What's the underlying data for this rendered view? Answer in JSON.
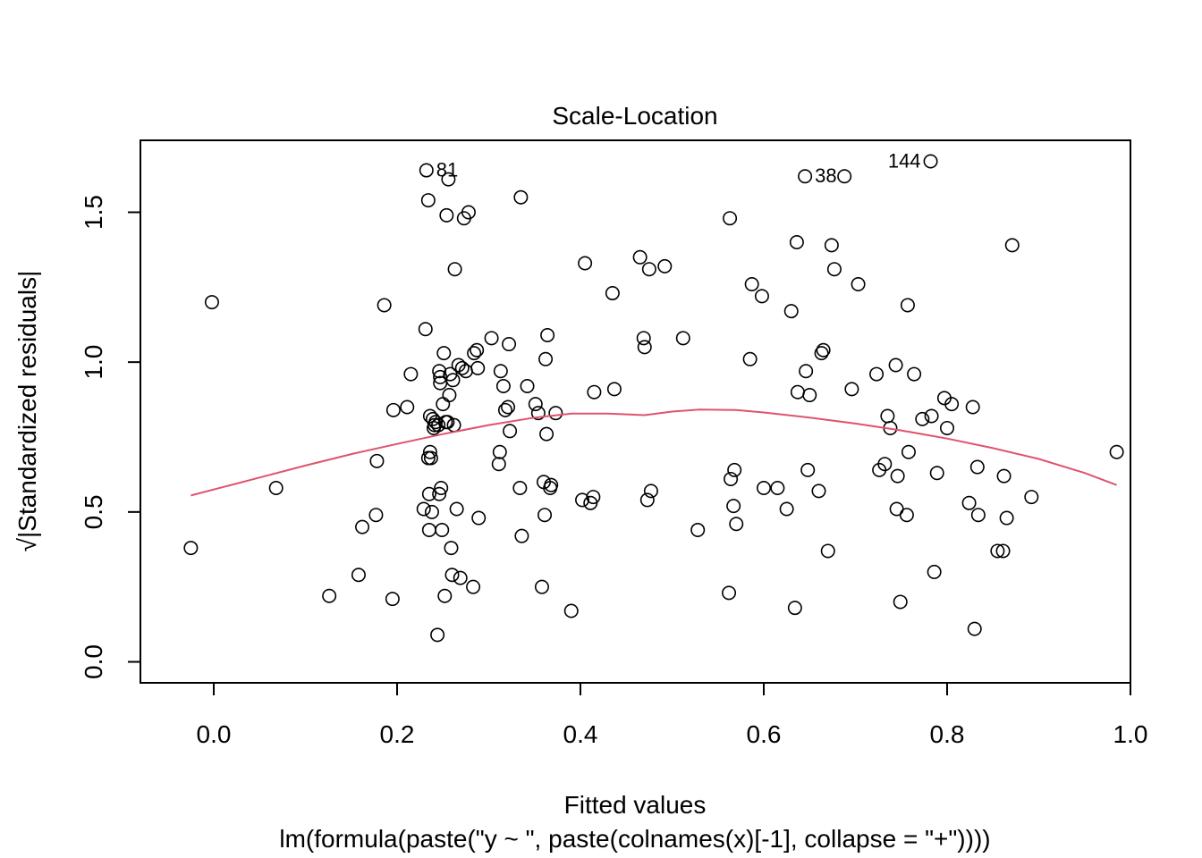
{
  "chart_data": {
    "type": "scatter",
    "title": "Scale-Location",
    "xlabel": "Fitted values",
    "ylabel": "√|Standardized residuals|",
    "subtitle": "lm(formula(paste(\"y ~ \", paste(colnames(x)[-1], collapse = \"+\"))))",
    "xlim": [
      -0.08,
      1.0
    ],
    "ylim": [
      -0.07,
      1.74
    ],
    "x_ticks": [
      0.0,
      0.2,
      0.4,
      0.6,
      0.8,
      1.0
    ],
    "x_tick_labels": [
      "0.0",
      "0.2",
      "0.4",
      "0.6",
      "0.8",
      "1.0"
    ],
    "y_ticks": [
      0.0,
      0.5,
      1.0,
      1.5
    ],
    "y_tick_labels": [
      "0.0",
      "0.5",
      "1.0",
      "1.5"
    ],
    "grid": false,
    "smooth_color": "#DF536B",
    "point_color": "#000000",
    "points": [
      [
        -0.025,
        0.38
      ],
      [
        -0.002,
        1.2
      ],
      [
        0.068,
        0.58
      ],
      [
        0.126,
        0.22
      ],
      [
        0.158,
        0.29
      ],
      [
        0.162,
        0.45
      ],
      [
        0.177,
        0.49
      ],
      [
        0.178,
        0.67
      ],
      [
        0.186,
        1.19
      ],
      [
        0.195,
        0.21
      ],
      [
        0.196,
        0.84
      ],
      [
        0.211,
        0.85
      ],
      [
        0.215,
        0.96
      ],
      [
        0.229,
        0.51
      ],
      [
        0.231,
        1.11
      ],
      [
        0.232,
        1.64
      ],
      [
        0.234,
        1.54
      ],
      [
        0.234,
        0.68
      ],
      [
        0.235,
        0.44
      ],
      [
        0.235,
        0.56
      ],
      [
        0.236,
        0.82
      ],
      [
        0.236,
        0.7
      ],
      [
        0.237,
        0.68
      ],
      [
        0.238,
        0.5
      ],
      [
        0.239,
        0.81
      ],
      [
        0.24,
        0.78
      ],
      [
        0.241,
        0.79
      ],
      [
        0.242,
        0.8
      ],
      [
        0.244,
        0.09
      ],
      [
        0.245,
        0.79
      ],
      [
        0.246,
        0.97
      ],
      [
        0.246,
        0.56
      ],
      [
        0.247,
        0.95
      ],
      [
        0.247,
        0.93
      ],
      [
        0.248,
        0.58
      ],
      [
        0.249,
        0.44
      ],
      [
        0.25,
        0.86
      ],
      [
        0.251,
        1.03
      ],
      [
        0.252,
        0.22
      ],
      [
        0.253,
        0.8
      ],
      [
        0.254,
        1.49
      ],
      [
        0.255,
        0.8
      ],
      [
        0.256,
        1.61
      ],
      [
        0.257,
        0.89
      ],
      [
        0.258,
        0.96
      ],
      [
        0.259,
        0.38
      ],
      [
        0.26,
        0.29
      ],
      [
        0.261,
        0.94
      ],
      [
        0.262,
        0.79
      ],
      [
        0.263,
        1.31
      ],
      [
        0.265,
        0.51
      ],
      [
        0.267,
        0.99
      ],
      [
        0.269,
        0.28
      ],
      [
        0.271,
        0.98
      ],
      [
        0.273,
        1.48
      ],
      [
        0.275,
        0.97
      ],
      [
        0.278,
        1.5
      ],
      [
        0.283,
        0.25
      ],
      [
        0.284,
        1.03
      ],
      [
        0.287,
        1.04
      ],
      [
        0.288,
        0.98
      ],
      [
        0.289,
        0.48
      ],
      [
        0.303,
        1.08
      ],
      [
        0.311,
        0.66
      ],
      [
        0.312,
        0.7
      ],
      [
        0.313,
        0.97
      ],
      [
        0.316,
        0.92
      ],
      [
        0.318,
        0.84
      ],
      [
        0.321,
        0.85
      ],
      [
        0.322,
        1.06
      ],
      [
        0.323,
        0.77
      ],
      [
        0.334,
        0.58
      ],
      [
        0.335,
        1.55
      ],
      [
        0.336,
        0.42
      ],
      [
        0.342,
        0.92
      ],
      [
        0.351,
        0.86
      ],
      [
        0.354,
        0.83
      ],
      [
        0.358,
        0.25
      ],
      [
        0.36,
        0.6
      ],
      [
        0.361,
        0.49
      ],
      [
        0.362,
        1.01
      ],
      [
        0.363,
        0.76
      ],
      [
        0.364,
        1.09
      ],
      [
        0.367,
        0.58
      ],
      [
        0.368,
        0.59
      ],
      [
        0.373,
        0.83
      ],
      [
        0.39,
        0.17
      ],
      [
        0.402,
        0.54
      ],
      [
        0.405,
        1.33
      ],
      [
        0.411,
        0.53
      ],
      [
        0.414,
        0.55
      ],
      [
        0.415,
        0.9
      ],
      [
        0.435,
        1.23
      ],
      [
        0.437,
        0.91
      ],
      [
        0.465,
        1.35
      ],
      [
        0.469,
        1.08
      ],
      [
        0.47,
        1.05
      ],
      [
        0.473,
        0.54
      ],
      [
        0.475,
        1.31
      ],
      [
        0.477,
        0.57
      ],
      [
        0.492,
        1.32
      ],
      [
        0.512,
        1.08
      ],
      [
        0.528,
        0.44
      ],
      [
        0.562,
        0.23
      ],
      [
        0.563,
        1.48
      ],
      [
        0.564,
        0.61
      ],
      [
        0.567,
        0.52
      ],
      [
        0.568,
        0.64
      ],
      [
        0.57,
        0.46
      ],
      [
        0.585,
        1.01
      ],
      [
        0.587,
        1.26
      ],
      [
        0.598,
        1.22
      ],
      [
        0.6,
        0.58
      ],
      [
        0.615,
        0.58
      ],
      [
        0.625,
        0.51
      ],
      [
        0.63,
        1.17
      ],
      [
        0.634,
        0.18
      ],
      [
        0.636,
        1.4
      ],
      [
        0.637,
        0.9
      ],
      [
        0.645,
        1.62
      ],
      [
        0.646,
        0.97
      ],
      [
        0.648,
        0.64
      ],
      [
        0.65,
        0.89
      ],
      [
        0.66,
        0.57
      ],
      [
        0.663,
        1.03
      ],
      [
        0.665,
        1.04
      ],
      [
        0.67,
        0.37
      ],
      [
        0.674,
        1.39
      ],
      [
        0.677,
        1.31
      ],
      [
        0.688,
        1.62
      ],
      [
        0.696,
        0.91
      ],
      [
        0.703,
        1.26
      ],
      [
        0.723,
        0.96
      ],
      [
        0.726,
        0.64
      ],
      [
        0.732,
        0.66
      ],
      [
        0.735,
        0.82
      ],
      [
        0.738,
        0.78
      ],
      [
        0.744,
        0.99
      ],
      [
        0.745,
        0.51
      ],
      [
        0.746,
        0.62
      ],
      [
        0.749,
        0.2
      ],
      [
        0.756,
        0.49
      ],
      [
        0.757,
        1.19
      ],
      [
        0.758,
        0.7
      ],
      [
        0.764,
        0.96
      ],
      [
        0.773,
        0.81
      ],
      [
        0.782,
        1.67
      ],
      [
        0.783,
        0.82
      ],
      [
        0.786,
        0.3
      ],
      [
        0.789,
        0.63
      ],
      [
        0.797,
        0.88
      ],
      [
        0.8,
        0.78
      ],
      [
        0.805,
        0.86
      ],
      [
        0.824,
        0.53
      ],
      [
        0.828,
        0.85
      ],
      [
        0.83,
        0.11
      ],
      [
        0.833,
        0.65
      ],
      [
        0.834,
        0.49
      ],
      [
        0.855,
        0.37
      ],
      [
        0.861,
        0.37
      ],
      [
        0.862,
        0.62
      ],
      [
        0.865,
        0.48
      ],
      [
        0.871,
        1.39
      ],
      [
        0.892,
        0.55
      ],
      [
        0.985,
        0.7
      ]
    ],
    "smooth_line": [
      [
        -0.025,
        0.555
      ],
      [
        0.05,
        0.615
      ],
      [
        0.1,
        0.655
      ],
      [
        0.15,
        0.693
      ],
      [
        0.2,
        0.727
      ],
      [
        0.25,
        0.76
      ],
      [
        0.3,
        0.79
      ],
      [
        0.35,
        0.815
      ],
      [
        0.39,
        0.828
      ],
      [
        0.43,
        0.828
      ],
      [
        0.47,
        0.823
      ],
      [
        0.5,
        0.835
      ],
      [
        0.53,
        0.842
      ],
      [
        0.57,
        0.84
      ],
      [
        0.6,
        0.832
      ],
      [
        0.65,
        0.815
      ],
      [
        0.7,
        0.795
      ],
      [
        0.75,
        0.772
      ],
      [
        0.8,
        0.745
      ],
      [
        0.85,
        0.713
      ],
      [
        0.9,
        0.677
      ],
      [
        0.95,
        0.63
      ],
      [
        0.985,
        0.59
      ]
    ],
    "annotations": [
      {
        "text": "81",
        "x": 0.232,
        "y": 1.64
      },
      {
        "text": "38",
        "x": 0.645,
        "y": 1.62
      },
      {
        "text": "144",
        "x": 0.782,
        "y": 1.67
      }
    ]
  }
}
